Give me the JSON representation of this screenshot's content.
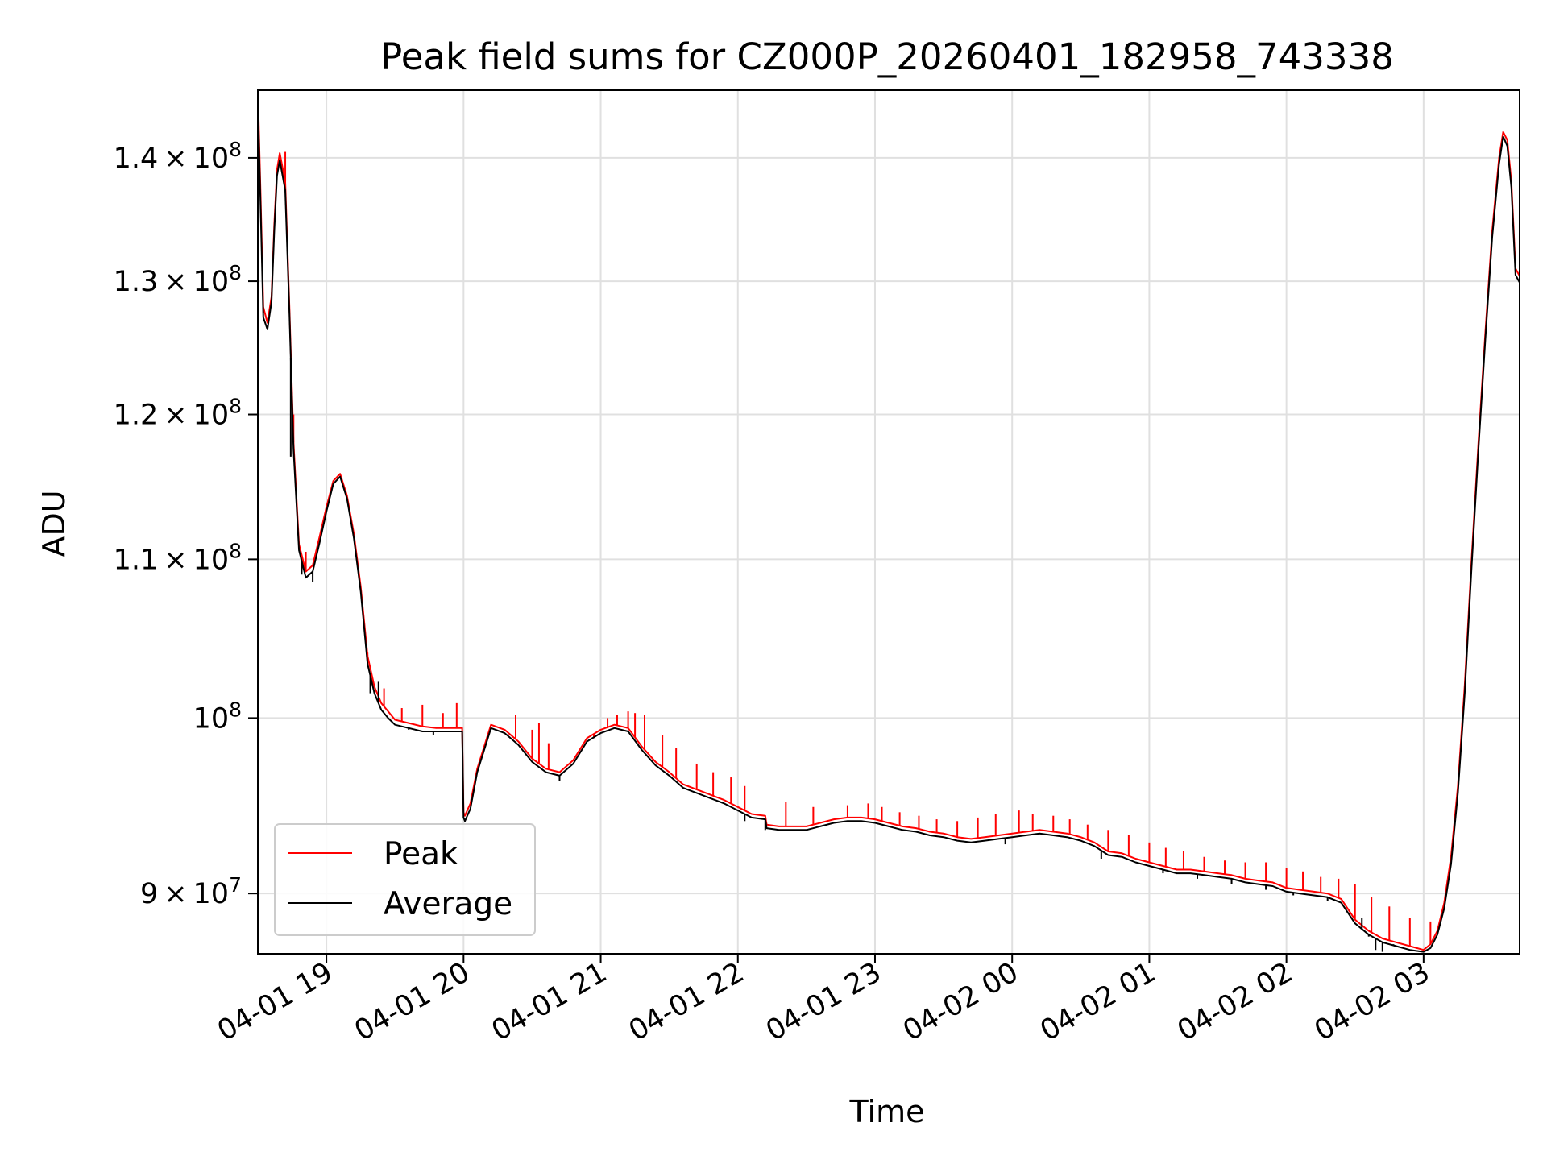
{
  "chart_data": {
    "type": "line",
    "title": "Peak field sums for CZ000P_20260401_182958_743338",
    "xlabel": "Time",
    "ylabel": "ADU",
    "yscale": "log",
    "ylim": [
      86800000,
      145800000
    ],
    "xlim_hours": [
      18.5,
      27.7
    ],
    "x_tick_hours": [
      19,
      20,
      21,
      22,
      23,
      24,
      25,
      26,
      27
    ],
    "x_tick_labels": [
      "04-01 19",
      "04-01 20",
      "04-01 21",
      "04-01 22",
      "04-01 23",
      "04-02 00",
      "04-02 01",
      "04-02 02",
      "04-02 03"
    ],
    "y_ticks": [
      {
        "value": 90000000,
        "mantissa": "9",
        "exp": "7"
      },
      {
        "value": 100000000,
        "mantissa": "",
        "exp": "8"
      },
      {
        "value": 110000000,
        "mantissa": "1.1",
        "exp": "8"
      },
      {
        "value": 120000000,
        "mantissa": "1.2",
        "exp": "8"
      },
      {
        "value": 130000000,
        "mantissa": "1.3",
        "exp": "8"
      },
      {
        "value": 140000000,
        "mantissa": "1.4",
        "exp": "8"
      }
    ],
    "grid": true,
    "legend_position": "lower-left",
    "series": [
      {
        "name": "Peak",
        "color": "#ff0000",
        "spikes": "upward",
        "x_hours": [
          18.5,
          18.52,
          18.54,
          18.57,
          18.6,
          18.62,
          18.64,
          18.66,
          18.7,
          18.73,
          18.76,
          18.8,
          18.85,
          18.9,
          18.95,
          19.0,
          19.05,
          19.1,
          19.15,
          19.2,
          19.25,
          19.3,
          19.35,
          19.4,
          19.45,
          19.5,
          19.6,
          19.7,
          19.8,
          19.99,
          20.0,
          20.01,
          20.05,
          20.1,
          20.2,
          20.3,
          20.4,
          20.5,
          20.6,
          20.7,
          20.8,
          20.9,
          21.0,
          21.1,
          21.2,
          21.3,
          21.4,
          21.5,
          21.6,
          21.7,
          21.8,
          21.9,
          22.0,
          22.1,
          22.2,
          22.21,
          22.3,
          22.4,
          22.5,
          22.6,
          22.7,
          22.8,
          22.9,
          23.0,
          23.1,
          23.2,
          23.3,
          23.4,
          23.5,
          23.6,
          23.7,
          23.8,
          23.9,
          24.0,
          24.1,
          24.2,
          24.3,
          24.4,
          24.5,
          24.6,
          24.7,
          24.8,
          24.9,
          25.0,
          25.1,
          25.2,
          25.3,
          25.4,
          25.5,
          25.6,
          25.7,
          25.8,
          25.9,
          26.0,
          26.1,
          26.2,
          26.3,
          26.4,
          26.5,
          26.6,
          26.7,
          26.8,
          26.9,
          27.0,
          27.05,
          27.1,
          27.15,
          27.2,
          27.25,
          27.3,
          27.35,
          27.4,
          27.45,
          27.5,
          27.55,
          27.58,
          27.61,
          27.64,
          27.67,
          27.7
        ],
        "values": [
          146000000,
          137000000,
          128000000,
          126800000,
          128800000,
          134500000,
          139000000,
          140400000,
          138000000,
          128000000,
          118000000,
          111000000,
          109200000,
          109600000,
          111500000,
          113500000,
          115300000,
          115800000,
          114300000,
          111700000,
          108200000,
          103800000,
          101900000,
          100900000,
          100400000,
          99900000,
          99700000,
          99500000,
          99400000,
          99400000,
          94500000,
          94300000,
          95000000,
          97000000,
          99600000,
          99300000,
          98600000,
          97600000,
          97000000,
          96800000,
          97500000,
          98800000,
          99300000,
          99600000,
          99400000,
          98300000,
          97400000,
          96800000,
          96100000,
          95800000,
          95500000,
          95200000,
          94800000,
          94400000,
          94300000,
          93800000,
          93700000,
          93700000,
          93700000,
          93900000,
          94100000,
          94200000,
          94200000,
          94100000,
          93900000,
          93700000,
          93600000,
          93400000,
          93300000,
          93100000,
          93000000,
          93100000,
          93200000,
          93300000,
          93400000,
          93500000,
          93400000,
          93300000,
          93100000,
          92800000,
          92300000,
          92200000,
          91900000,
          91700000,
          91500000,
          91300000,
          91300000,
          91200000,
          91100000,
          91000000,
          90800000,
          90700000,
          90600000,
          90300000,
          90200000,
          90100000,
          90000000,
          89700000,
          88600000,
          88000000,
          87600000,
          87400000,
          87200000,
          87000000,
          87300000,
          88000000,
          89500000,
          92000000,
          96000000,
          102000000,
          110000000,
          118000000,
          126000000,
          134000000,
          140000000,
          142200000,
          141500000,
          138000000,
          131000000,
          130400000
        ],
        "spike_x_hours": [
          18.7,
          18.76,
          18.85,
          19.3,
          19.42,
          19.55,
          19.7,
          19.85,
          19.95,
          20.38,
          20.5,
          20.55,
          20.62,
          20.95,
          21.05,
          21.12,
          21.2,
          21.25,
          21.32,
          21.45,
          21.55,
          21.7,
          21.82,
          21.95,
          22.05,
          22.35,
          22.55,
          22.8,
          22.95,
          23.05,
          23.18,
          23.32,
          23.45,
          23.6,
          23.75,
          23.88,
          24.05,
          24.15,
          24.3,
          24.42,
          24.55,
          24.7,
          24.85,
          25.0,
          25.12,
          25.25,
          25.4,
          25.55,
          25.7,
          25.85,
          26.0,
          26.12,
          26.25,
          26.38,
          26.5,
          26.62,
          26.75,
          26.9,
          27.05
        ],
        "spike_values": [
          140500000,
          120000000,
          110500000,
          104000000,
          101800000,
          100600000,
          100800000,
          100300000,
          100900000,
          100200000,
          99300000,
          99700000,
          98500000,
          98800000,
          100000000,
          100200000,
          100400000,
          100300000,
          100200000,
          99000000,
          98200000,
          97300000,
          96800000,
          96500000,
          96000000,
          95100000,
          94800000,
          94900000,
          95000000,
          94800000,
          94500000,
          94300000,
          94100000,
          94000000,
          94200000,
          94400000,
          94600000,
          94400000,
          94300000,
          94100000,
          93800000,
          93500000,
          93200000,
          92800000,
          92500000,
          92300000,
          92000000,
          91800000,
          91700000,
          91700000,
          91400000,
          91200000,
          90900000,
          90800000,
          90500000,
          89800000,
          89300000,
          88700000,
          88500000
        ]
      },
      {
        "name": "Average",
        "color": "#000000",
        "spikes": "downward",
        "x_hours": [
          18.5,
          18.52,
          18.54,
          18.57,
          18.6,
          18.62,
          18.64,
          18.66,
          18.7,
          18.73,
          18.76,
          18.8,
          18.85,
          18.9,
          18.95,
          19.0,
          19.05,
          19.1,
          19.15,
          19.2,
          19.25,
          19.3,
          19.35,
          19.4,
          19.45,
          19.5,
          19.6,
          19.7,
          19.8,
          19.99,
          20.0,
          20.01,
          20.05,
          20.1,
          20.2,
          20.3,
          20.4,
          20.5,
          20.6,
          20.7,
          20.8,
          20.9,
          21.0,
          21.1,
          21.2,
          21.3,
          21.4,
          21.5,
          21.6,
          21.7,
          21.8,
          21.9,
          22.0,
          22.1,
          22.2,
          22.21,
          22.3,
          22.4,
          22.5,
          22.6,
          22.7,
          22.8,
          22.9,
          23.0,
          23.1,
          23.2,
          23.3,
          23.4,
          23.5,
          23.6,
          23.7,
          23.8,
          23.9,
          24.0,
          24.1,
          24.2,
          24.3,
          24.4,
          24.5,
          24.6,
          24.7,
          24.8,
          24.9,
          25.0,
          25.1,
          25.2,
          25.3,
          25.4,
          25.5,
          25.6,
          25.7,
          25.8,
          25.9,
          26.0,
          26.1,
          26.2,
          26.3,
          26.4,
          26.5,
          26.6,
          26.7,
          26.8,
          26.9,
          27.0,
          27.05,
          27.1,
          27.15,
          27.2,
          27.25,
          27.3,
          27.35,
          27.4,
          27.45,
          27.5,
          27.55,
          27.58,
          27.61,
          27.64,
          27.67,
          27.7
        ],
        "values": [
          145000000,
          136000000,
          127200000,
          126300000,
          128400000,
          134000000,
          138500000,
          139800000,
          137300000,
          127500000,
          117500000,
          110600000,
          108800000,
          109200000,
          111100000,
          113200000,
          115100000,
          115600000,
          114100000,
          111400000,
          107900000,
          103300000,
          101500000,
          100500000,
          100000000,
          99600000,
          99400000,
          99200000,
          99200000,
          99200000,
          94200000,
          94000000,
          94700000,
          96800000,
          99400000,
          99100000,
          98400000,
          97400000,
          96800000,
          96600000,
          97300000,
          98600000,
          99100000,
          99400000,
          99200000,
          98100000,
          97200000,
          96600000,
          95900000,
          95600000,
          95300000,
          95000000,
          94600000,
          94200000,
          94100000,
          93600000,
          93500000,
          93500000,
          93500000,
          93700000,
          93900000,
          94000000,
          94000000,
          93900000,
          93700000,
          93500000,
          93400000,
          93200000,
          93100000,
          92900000,
          92800000,
          92900000,
          93000000,
          93100000,
          93200000,
          93300000,
          93200000,
          93100000,
          92900000,
          92600000,
          92100000,
          92000000,
          91700000,
          91500000,
          91300000,
          91100000,
          91100000,
          91000000,
          90900000,
          90800000,
          90600000,
          90500000,
          90400000,
          90100000,
          90000000,
          89900000,
          89800000,
          89500000,
          88400000,
          87800000,
          87400000,
          87200000,
          87000000,
          86900000,
          87100000,
          87800000,
          89200000,
          91600000,
          95600000,
          101500000,
          109500000,
          117500000,
          125500000,
          133500000,
          139500000,
          141800000,
          141000000,
          137500000,
          130500000,
          129900000
        ],
        "spike_x_hours": [
          18.74,
          18.82,
          18.9,
          19.32,
          19.38,
          19.48,
          19.6,
          19.78,
          20.7,
          22.05,
          22.2,
          23.95,
          24.65,
          25.1,
          25.35,
          25.6,
          25.85,
          26.05,
          26.3,
          26.55,
          26.6,
          26.65,
          26.7,
          26.78,
          26.85
        ],
        "spike_values": [
          117000000,
          109000000,
          108500000,
          101500000,
          102200000,
          99800000,
          99300000,
          99000000,
          96300000,
          94000000,
          93500000,
          92700000,
          91900000,
          91100000,
          90800000,
          90500000,
          90200000,
          89900000,
          89600000,
          88700000,
          87700000,
          87000000,
          86900000,
          87300000,
          87100000
        ]
      }
    ]
  }
}
